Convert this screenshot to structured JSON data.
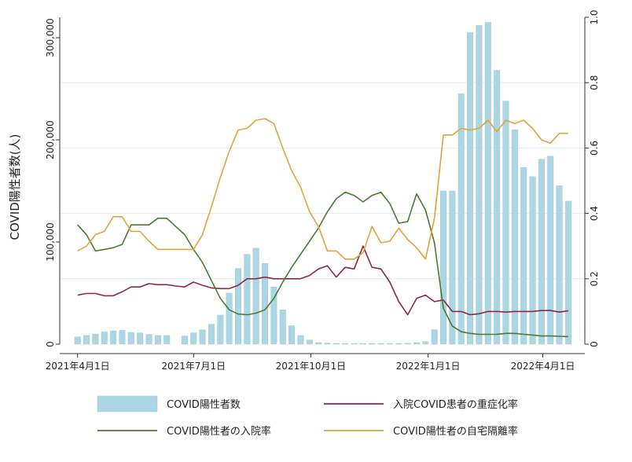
{
  "chart_data": {
    "type": "bar+line",
    "title": "",
    "ylabel_left": "COVID陽性者数(人)",
    "ylim_left": [
      0,
      320000
    ],
    "yticks_left": [
      {
        "value": 0,
        "label": "0"
      },
      {
        "value": 100000,
        "label": "100,000"
      },
      {
        "value": 200000,
        "label": "200,000"
      },
      {
        "value": 300000,
        "label": "300,000"
      }
    ],
    "ylim_right": [
      0,
      1.0
    ],
    "yticks_right": [
      {
        "value": 0,
        "label": "0"
      },
      {
        "value": 0.2,
        "label": "0.2"
      },
      {
        "value": 0.4,
        "label": "0.4"
      },
      {
        "value": 0.6,
        "label": "0.6"
      },
      {
        "value": 0.8,
        "label": "0.8"
      },
      {
        "value": 1.0,
        "label": "1.0"
      }
    ],
    "xticks": [
      "2021年4月1日",
      "2021年7月1日",
      "2021年10月1日",
      "2022年1月1日",
      "2022年4月1日"
    ],
    "grid": "horizontal",
    "colors": {
      "bar": "#acd6e3",
      "bar_edge": "#9cc9d8",
      "severe": "#8b2942",
      "hospital": "#4c7a2f",
      "home": "#e2a33c",
      "grid": "#dceef2",
      "axis": "#333333"
    },
    "legend": [
      {
        "label": "COVID陽性者数",
        "type": "bar",
        "color": "#acd6e3"
      },
      {
        "label": "入院COVID患者の重症化率",
        "type": "line",
        "color": "#8b2942"
      },
      {
        "label": "COVID陽性者の入院率",
        "type": "line",
        "color": "#4c7a2f"
      },
      {
        "label": "COVID陽性者の自宅隔離率",
        "type": "line",
        "color": "#e2a33c"
      }
    ],
    "x": [
      "2021-04-01",
      "2021-04-08",
      "2021-04-15",
      "2021-04-22",
      "2021-04-29",
      "2021-05-06",
      "2021-05-13",
      "2021-05-20",
      "2021-05-27",
      "2021-06-03",
      "2021-06-10",
      "2021-06-17",
      "2021-06-24",
      "2021-07-01",
      "2021-07-08",
      "2021-07-15",
      "2021-07-22",
      "2021-07-29",
      "2021-08-05",
      "2021-08-12",
      "2021-08-19",
      "2021-08-26",
      "2021-09-02",
      "2021-09-09",
      "2021-09-16",
      "2021-09-23",
      "2021-09-30",
      "2021-10-07",
      "2021-10-14",
      "2021-10-21",
      "2021-10-28",
      "2021-11-04",
      "2021-11-11",
      "2021-11-18",
      "2021-11-25",
      "2021-12-02",
      "2021-12-09",
      "2021-12-16",
      "2021-12-23",
      "2021-12-30",
      "2022-01-06",
      "2022-01-13",
      "2022-01-20",
      "2022-01-27",
      "2022-02-03",
      "2022-02-10",
      "2022-02-17",
      "2022-02-24",
      "2022-03-03",
      "2022-03-10",
      "2022-03-17",
      "2022-03-24",
      "2022-03-31",
      "2022-04-07",
      "2022-04-14",
      "2022-04-21"
    ],
    "series": [
      {
        "name": "COVID陽性者数",
        "type": "bar",
        "values": [
          7000,
          8500,
          10000,
          12000,
          13000,
          13500,
          11500,
          11000,
          9500,
          8500,
          8500,
          0,
          8000,
          11000,
          14000,
          19500,
          28500,
          50000,
          74000,
          88000,
          94000,
          79000,
          56000,
          33500,
          18000,
          8500,
          4000,
          1500,
          1000,
          800,
          700,
          700,
          700,
          700,
          700,
          700,
          700,
          1000,
          1500,
          2500,
          14000,
          150000,
          150000,
          245000,
          305000,
          312000,
          315000,
          268000,
          238000,
          210000,
          173000,
          164000,
          181000,
          184000,
          155000,
          140000
        ]
      },
      {
        "name": "入院COVID患者の重症化率",
        "type": "line",
        "values": [
          0.15,
          0.155,
          0.155,
          0.148,
          0.148,
          0.16,
          0.175,
          0.175,
          0.185,
          0.182,
          0.182,
          0.178,
          0.175,
          0.19,
          0.18,
          0.172,
          0.17,
          0.17,
          0.18,
          0.2,
          0.2,
          0.205,
          0.2,
          0.2,
          0.2,
          0.2,
          0.21,
          0.23,
          0.24,
          0.205,
          0.235,
          0.23,
          0.3,
          0.235,
          0.23,
          0.19,
          0.13,
          0.09,
          0.14,
          0.15,
          0.13,
          0.135,
          0.1,
          0.1,
          0.09,
          0.093,
          0.1,
          0.1,
          0.098,
          0.1,
          0.1,
          0.1,
          0.103,
          0.103,
          0.098,
          0.102
        ]
      },
      {
        "name": "COVID陽性者の入院率",
        "type": "line",
        "values": [
          0.365,
          0.335,
          0.285,
          0.29,
          0.295,
          0.305,
          0.365,
          0.365,
          0.365,
          0.385,
          0.385,
          0.36,
          0.335,
          0.29,
          0.25,
          0.195,
          0.14,
          0.105,
          0.092,
          0.09,
          0.095,
          0.105,
          0.14,
          0.19,
          0.235,
          0.275,
          0.315,
          0.355,
          0.405,
          0.445,
          0.465,
          0.455,
          0.435,
          0.455,
          0.465,
          0.43,
          0.37,
          0.375,
          0.46,
          0.41,
          0.31,
          0.11,
          0.055,
          0.038,
          0.033,
          0.03,
          0.03,
          0.03,
          0.033,
          0.033,
          0.03,
          0.028,
          0.025,
          0.025,
          0.024,
          0.023
        ]
      },
      {
        "name": "COVID陽性者の自宅隔離率",
        "type": "line",
        "values": [
          0.285,
          0.3,
          0.335,
          0.345,
          0.39,
          0.39,
          0.345,
          0.345,
          0.315,
          0.29,
          0.29,
          0.29,
          0.29,
          0.29,
          0.335,
          0.42,
          0.51,
          0.59,
          0.655,
          0.66,
          0.685,
          0.69,
          0.675,
          0.6,
          0.53,
          0.48,
          0.405,
          0.36,
          0.285,
          0.285,
          0.26,
          0.26,
          0.28,
          0.36,
          0.31,
          0.315,
          0.355,
          0.32,
          0.295,
          0.26,
          0.385,
          0.64,
          0.64,
          0.66,
          0.655,
          0.66,
          0.685,
          0.65,
          0.685,
          0.675,
          0.685,
          0.66,
          0.625,
          0.615,
          0.645,
          0.645
        ]
      }
    ]
  }
}
